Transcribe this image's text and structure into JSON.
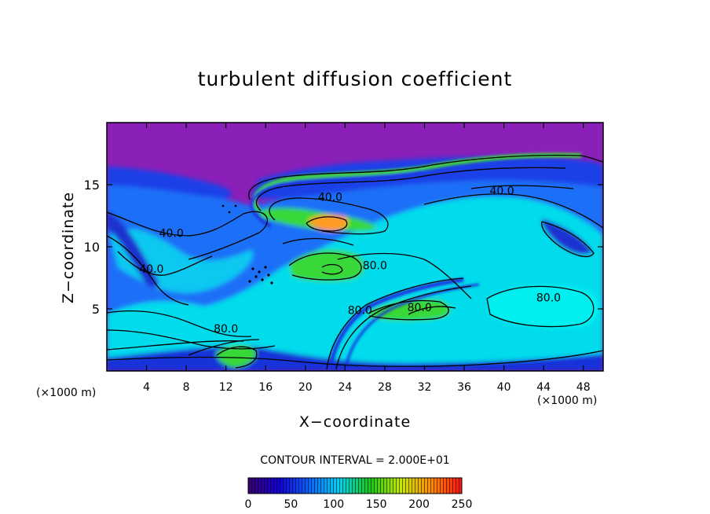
{
  "chart_data": {
    "type": "heatmap",
    "title": "turbulent diffusion coefficient",
    "xlabel": "X−coordinate",
    "ylabel": "Z−coordinate",
    "x_unit_left": "(×1000 m)",
    "x_unit_right": "(×1000 m)",
    "xlim": [
      0,
      50
    ],
    "ylim": [
      0,
      20
    ],
    "x_ticks": [
      4,
      8,
      12,
      16,
      20,
      24,
      28,
      32,
      36,
      40,
      44,
      48
    ],
    "y_ticks": [
      5,
      10,
      15
    ],
    "contour_interval_label": "CONTOUR INTERVAL = 2.000E+01",
    "contour_labels": [
      {
        "text": "40.0",
        "x": 6.5,
        "y": 10.8
      },
      {
        "text": "40.0",
        "x": 4.5,
        "y": 7.9
      },
      {
        "text": "40.0",
        "x": 22.5,
        "y": 13.7
      },
      {
        "text": "40.0",
        "x": 39.8,
        "y": 14.2
      },
      {
        "text": "80.0",
        "x": 27.0,
        "y": 8.2
      },
      {
        "text": "80.0",
        "x": 44.5,
        "y": 5.6
      },
      {
        "text": "80.0",
        "x": 31.5,
        "y": 4.8
      },
      {
        "text": "80.0",
        "x": 25.5,
        "y": 4.6
      },
      {
        "text": "80.0",
        "x": 12.0,
        "y": 3.1
      }
    ],
    "colorbar": {
      "min": 0,
      "max": 250,
      "ticks": [
        0,
        50,
        100,
        150,
        200,
        250
      ],
      "colors": [
        "#3a0070",
        "#1400d8",
        "#0a64ff",
        "#00d4f0",
        "#18c818",
        "#c8e800",
        "#ff8c00",
        "#ff1010"
      ]
    },
    "field_colors": {
      "background": "#8a20b8",
      "dark_blue": "#1430e0",
      "blue": "#1a78ff",
      "cyan": "#00e6f0",
      "green": "#30d830",
      "orange": "#ff9800"
    }
  }
}
